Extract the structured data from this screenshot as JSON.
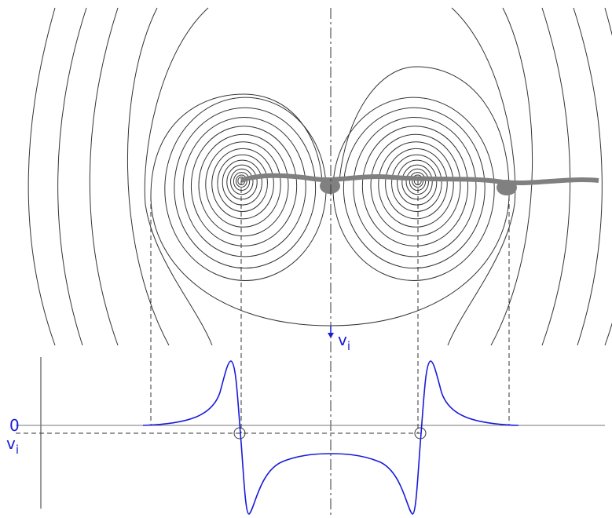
{
  "labels": {
    "arrow_label": {
      "symbol": "v",
      "subscript": "i"
    },
    "zero": "0",
    "axis_label": {
      "symbol": "v",
      "subscript": "i"
    }
  }
}
